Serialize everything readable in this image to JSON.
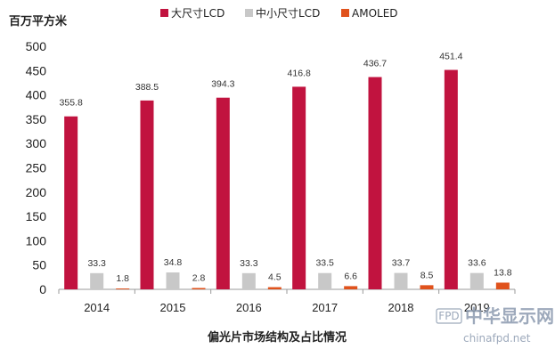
{
  "chart_data": {
    "type": "bar",
    "ylabel": "百万平方米",
    "caption": "偏光片市场结构及占比情况",
    "categories": [
      "2014",
      "2015",
      "2016",
      "2017",
      "2018",
      "2019"
    ],
    "ylim": [
      0,
      500
    ],
    "yticks": [
      0,
      50,
      100,
      150,
      200,
      250,
      300,
      350,
      400,
      450,
      500
    ],
    "legend_position": "top",
    "grid": false,
    "series": [
      {
        "name": "大尺寸LCD",
        "color": "#c1133f",
        "values": [
          355.8,
          388.5,
          394.3,
          416.8,
          436.7,
          451.4
        ],
        "labels": [
          "355.8",
          "388.5",
          "394.3",
          "416.8",
          "436.7",
          "451.4"
        ]
      },
      {
        "name": "中小尺寸LCD",
        "color": "#c8c8c8",
        "values": [
          33.3,
          34.8,
          33.3,
          33.5,
          33.7,
          33.6
        ],
        "labels": [
          "33.3",
          "34.8",
          "33.3",
          "33.5",
          "33.7",
          "33.6"
        ]
      },
      {
        "name": "AMOLED",
        "color": "#e0521c",
        "values": [
          1.8,
          2.8,
          4.5,
          6.6,
          8.5,
          13.8
        ],
        "labels": [
          "1.8",
          "2.8",
          "4.5",
          "6.6",
          "8.5",
          "13.8"
        ]
      }
    ]
  },
  "watermark": {
    "badge": "FPD",
    "title": "中华显示网",
    "url": "chinafpd.net"
  }
}
